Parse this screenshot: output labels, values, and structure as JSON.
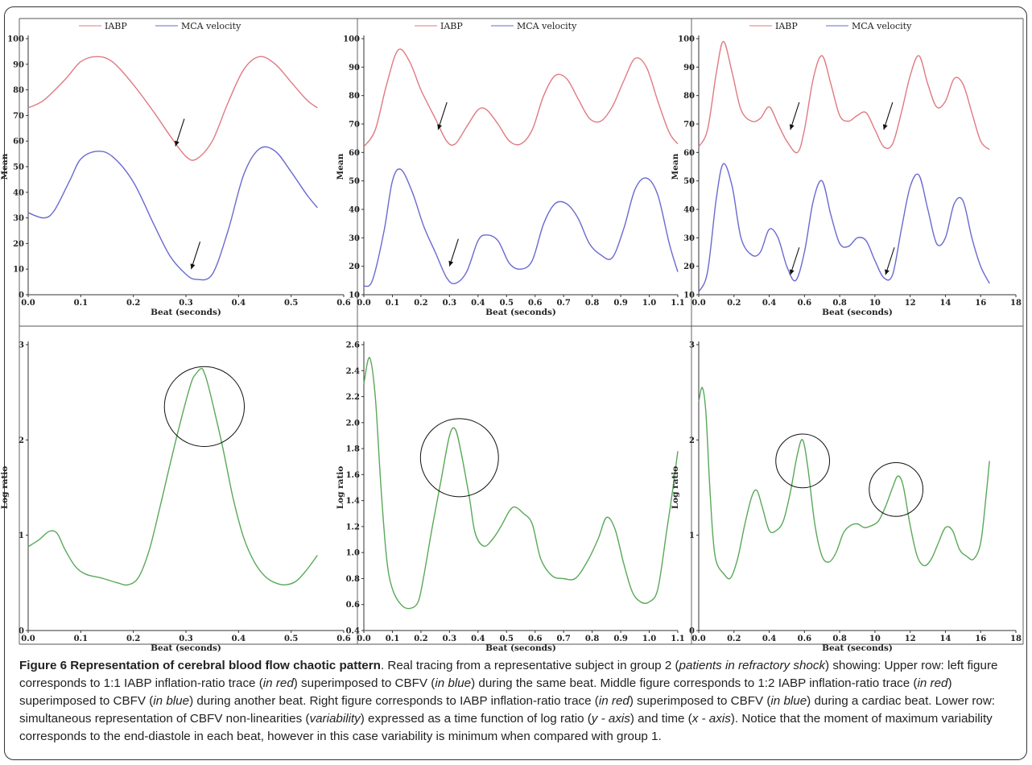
{
  "colors": {
    "iabp": "#e07a82",
    "mca": "#6a6ad0",
    "log_ratio": "#5aa85a",
    "frame": "#333333"
  },
  "chart_data": [
    {
      "type": "line",
      "id": "top-left",
      "xlabel": "Beat (seconds)",
      "ylabel": "Mean",
      "xlim": [
        0,
        0.6
      ],
      "ylim": [
        0,
        100
      ],
      "xticks": [
        "0.0",
        "0.1",
        "0.2",
        "0.3",
        "0.4",
        "0.5",
        "0.6"
      ],
      "yticks": [
        "0",
        "10",
        "20",
        "30",
        "40",
        "50",
        "60",
        "70",
        "80",
        "90",
        "100"
      ],
      "legend": [
        "IABP",
        "MCA velocity"
      ],
      "series": [
        {
          "name": "IABP",
          "color": "#e07a82",
          "x": [
            0,
            0.03,
            0.07,
            0.1,
            0.13,
            0.16,
            0.2,
            0.24,
            0.27,
            0.3,
            0.32,
            0.35,
            0.38,
            0.41,
            0.44,
            0.47,
            0.5,
            0.53,
            0.55
          ],
          "y": [
            73,
            76,
            84,
            91,
            93,
            91,
            82,
            71,
            62,
            54,
            53,
            60,
            75,
            88,
            93,
            90,
            83,
            76,
            73
          ]
        },
        {
          "name": "MCA velocity",
          "color": "#6a6ad0",
          "x": [
            0,
            0.03,
            0.05,
            0.08,
            0.1,
            0.13,
            0.16,
            0.2,
            0.24,
            0.27,
            0.3,
            0.32,
            0.35,
            0.38,
            0.41,
            0.44,
            0.47,
            0.5,
            0.53,
            0.55
          ],
          "y": [
            32,
            30,
            33,
            45,
            53,
            56,
            54,
            44,
            27,
            15,
            8,
            6,
            8,
            25,
            47,
            57,
            56,
            48,
            39,
            34
          ]
        }
      ],
      "arrows": [
        {
          "x": 0.28,
          "y": 58
        },
        {
          "x": 0.31,
          "y": 10
        }
      ]
    },
    {
      "type": "line",
      "id": "top-middle",
      "xlabel": "Beat (seconds)",
      "ylabel": "Mean",
      "xlim": [
        0,
        1.1
      ],
      "ylim": [
        10,
        100
      ],
      "xticks": [
        "0.0",
        "0.1",
        "0.2",
        "0.3",
        "0.4",
        "0.5",
        "0.6",
        "0.7",
        "0.8",
        "0.9",
        "1.0",
        "1.1"
      ],
      "yticks": [
        "10",
        "20",
        "30",
        "40",
        "50",
        "60",
        "70",
        "80",
        "90",
        "100"
      ],
      "legend": [
        "IABP",
        "MCA velocity"
      ],
      "series": [
        {
          "name": "IABP",
          "color": "#e07a82",
          "x": [
            0,
            0.04,
            0.08,
            0.12,
            0.16,
            0.2,
            0.25,
            0.29,
            0.32,
            0.36,
            0.4,
            0.43,
            0.47,
            0.51,
            0.55,
            0.59,
            0.63,
            0.67,
            0.71,
            0.75,
            0.79,
            0.83,
            0.87,
            0.91,
            0.95,
            0.99,
            1.03,
            1.07,
            1.1
          ],
          "y": [
            62,
            68,
            84,
            96,
            92,
            82,
            72,
            64,
            63,
            69,
            75,
            75,
            70,
            64,
            63,
            68,
            80,
            87,
            86,
            79,
            72,
            71,
            76,
            85,
            93,
            90,
            78,
            67,
            63
          ]
        },
        {
          "name": "MCA velocity",
          "color": "#6a6ad0",
          "x": [
            0,
            0.03,
            0.07,
            0.1,
            0.13,
            0.17,
            0.21,
            0.25,
            0.29,
            0.32,
            0.36,
            0.4,
            0.43,
            0.47,
            0.51,
            0.55,
            0.59,
            0.63,
            0.67,
            0.71,
            0.75,
            0.79,
            0.83,
            0.87,
            0.91,
            0.95,
            0.99,
            1.03,
            1.07,
            1.1
          ],
          "y": [
            13,
            15,
            32,
            50,
            54,
            46,
            34,
            25,
            16,
            14,
            18,
            29,
            31,
            29,
            21,
            19,
            22,
            35,
            42,
            42,
            37,
            28,
            24,
            23,
            33,
            47,
            51,
            45,
            28,
            18
          ]
        }
      ],
      "arrows": [
        {
          "x": 0.26,
          "y": 68
        },
        {
          "x": 0.3,
          "y": 20
        }
      ]
    },
    {
      "type": "line",
      "id": "top-right",
      "xlabel": "Beat (seconds)",
      "ylabel": "Mean",
      "xlim": [
        0,
        1.8
      ],
      "ylim": [
        10,
        100
      ],
      "xticks": [
        "0.0",
        "0.2",
        "0.4",
        "0.6",
        "0.8",
        "10",
        "12",
        "14",
        "16",
        "18"
      ],
      "yticks": [
        "10",
        "20",
        "30",
        "40",
        "50",
        "60",
        "70",
        "80",
        "90",
        "100"
      ],
      "legend": [
        "IABP",
        "MCA velocity"
      ],
      "series": [
        {
          "name": "IABP",
          "color": "#e07a82",
          "x": [
            0,
            0.05,
            0.1,
            0.14,
            0.19,
            0.24,
            0.3,
            0.35,
            0.4,
            0.45,
            0.5,
            0.56,
            0.6,
            0.65,
            0.7,
            0.75,
            0.8,
            0.85,
            0.9,
            0.95,
            1.0,
            1.05,
            1.1,
            1.15,
            1.2,
            1.25,
            1.3,
            1.35,
            1.4,
            1.45,
            1.5,
            1.55,
            1.6,
            1.65
          ],
          "y": [
            62,
            68,
            88,
            99,
            88,
            75,
            71,
            72,
            76,
            70,
            64,
            60,
            68,
            86,
            94,
            84,
            73,
            71,
            73,
            74,
            68,
            62,
            63,
            74,
            87,
            94,
            84,
            76,
            78,
            86,
            84,
            74,
            64,
            61
          ]
        },
        {
          "name": "MCA velocity",
          "color": "#6a6ad0",
          "x": [
            0,
            0.05,
            0.1,
            0.14,
            0.19,
            0.24,
            0.3,
            0.35,
            0.4,
            0.45,
            0.5,
            0.55,
            0.6,
            0.65,
            0.7,
            0.75,
            0.8,
            0.85,
            0.9,
            0.95,
            1.0,
            1.05,
            1.1,
            1.15,
            1.2,
            1.25,
            1.3,
            1.35,
            1.4,
            1.45,
            1.5,
            1.55,
            1.6,
            1.65
          ],
          "y": [
            11,
            18,
            44,
            56,
            48,
            30,
            24,
            25,
            33,
            30,
            20,
            15,
            25,
            43,
            50,
            38,
            28,
            27,
            30,
            29,
            22,
            16,
            17,
            33,
            48,
            52,
            40,
            28,
            30,
            42,
            43,
            30,
            20,
            14
          ]
        }
      ],
      "arrows": [
        {
          "x": 0.52,
          "y": 68
        },
        {
          "x": 0.52,
          "y": 17
        },
        {
          "x": 1.05,
          "y": 68
        },
        {
          "x": 1.06,
          "y": 17
        }
      ]
    },
    {
      "type": "line",
      "id": "bottom-left",
      "xlabel": "Beat (seconds)",
      "ylabel": "Log ratio",
      "xlim": [
        0,
        0.6
      ],
      "ylim": [
        0,
        3
      ],
      "xticks": [
        "0.0",
        "0.1",
        "0.2",
        "0.3",
        "0.4",
        "0.5",
        "0.6"
      ],
      "yticks": [
        "0",
        "1",
        "2",
        "3"
      ],
      "series": [
        {
          "name": "",
          "color": "#5aa85a",
          "x": [
            0,
            0.02,
            0.04,
            0.055,
            0.07,
            0.09,
            0.11,
            0.14,
            0.17,
            0.19,
            0.21,
            0.23,
            0.25,
            0.27,
            0.29,
            0.31,
            0.32,
            0.33,
            0.335,
            0.34,
            0.35,
            0.37,
            0.39,
            0.41,
            0.43,
            0.45,
            0.47,
            0.49,
            0.51,
            0.53,
            0.55
          ],
          "y": [
            0.88,
            0.95,
            1.04,
            1.02,
            0.85,
            0.67,
            0.59,
            0.55,
            0.5,
            0.48,
            0.56,
            0.84,
            1.28,
            1.75,
            2.2,
            2.6,
            2.7,
            2.75,
            2.7,
            2.62,
            2.4,
            1.92,
            1.38,
            0.97,
            0.72,
            0.57,
            0.5,
            0.48,
            0.52,
            0.64,
            0.79
          ]
        }
      ],
      "circles": [
        {
          "cx": 0.335,
          "cy": 2.35,
          "rx": 0.065,
          "ry": 0.48
        }
      ]
    },
    {
      "type": "line",
      "id": "bottom-middle",
      "xlabel": "Beat (seconds)",
      "ylabel": "Log ratio",
      "xlim": [
        0,
        1.1
      ],
      "ylim": [
        0.4,
        2.6
      ],
      "xticks": [
        "0.0",
        "0.1",
        "0.2",
        "0.3",
        "0.4",
        "0.5",
        "0.6",
        "0.7",
        "0.8",
        "0.9",
        "1.0",
        "1.1"
      ],
      "yticks": [
        "0.4",
        "0.6",
        "0.8",
        "1.0",
        "1.2",
        "1.4",
        "1.6",
        "1.8",
        "2.0",
        "2.2",
        "2.4",
        "2.6"
      ],
      "series": [
        {
          "name": "",
          "color": "#5aa85a",
          "x": [
            0,
            0.02,
            0.04,
            0.06,
            0.08,
            0.1,
            0.13,
            0.16,
            0.19,
            0.21,
            0.24,
            0.27,
            0.3,
            0.32,
            0.34,
            0.37,
            0.39,
            0.42,
            0.45,
            0.48,
            0.51,
            0.53,
            0.56,
            0.59,
            0.62,
            0.66,
            0.7,
            0.74,
            0.78,
            0.82,
            0.85,
            0.88,
            0.91,
            0.94,
            0.97,
            1.0,
            1.03,
            1.06,
            1.08,
            1.1
          ],
          "y": [
            2.3,
            2.5,
            2.2,
            1.5,
            0.95,
            0.72,
            0.6,
            0.57,
            0.62,
            0.82,
            1.2,
            1.55,
            1.9,
            1.95,
            1.78,
            1.42,
            1.15,
            1.05,
            1.1,
            1.2,
            1.32,
            1.35,
            1.3,
            1.22,
            0.95,
            0.82,
            0.8,
            0.8,
            0.92,
            1.1,
            1.27,
            1.18,
            0.92,
            0.7,
            0.62,
            0.62,
            0.72,
            1.15,
            1.45,
            1.78
          ]
        }
      ],
      "circles": [
        {
          "cx": 0.335,
          "cy": 1.73,
          "rx": 0.105,
          "ry": 0.37
        }
      ]
    },
    {
      "type": "line",
      "id": "bottom-right",
      "xlabel": "Beat (seconds)",
      "ylabel": "Log ratio",
      "xlim": [
        0,
        1.8
      ],
      "ylim": [
        0,
        3
      ],
      "xticks": [
        "0.0",
        "0.2",
        "0.4",
        "0.6",
        "0.8",
        "10",
        "12",
        "14",
        "16",
        "18"
      ],
      "yticks": [
        "0",
        "1",
        "2",
        "3"
      ],
      "series": [
        {
          "name": "",
          "color": "#5aa85a",
          "x": [
            0,
            0.02,
            0.04,
            0.06,
            0.08,
            0.1,
            0.14,
            0.18,
            0.22,
            0.26,
            0.3,
            0.33,
            0.36,
            0.4,
            0.44,
            0.48,
            0.52,
            0.56,
            0.59,
            0.62,
            0.66,
            0.7,
            0.74,
            0.78,
            0.82,
            0.86,
            0.9,
            0.94,
            0.98,
            1.02,
            1.06,
            1.1,
            1.13,
            1.16,
            1.2,
            1.24,
            1.28,
            1.32,
            1.36,
            1.4,
            1.44,
            1.48,
            1.52,
            1.56,
            1.6,
            1.63,
            1.65
          ],
          "y": [
            2.4,
            2.55,
            2.3,
            1.6,
            1.0,
            0.72,
            0.6,
            0.55,
            0.75,
            1.1,
            1.4,
            1.47,
            1.3,
            1.05,
            1.05,
            1.15,
            1.45,
            1.85,
            2.0,
            1.7,
            1.1,
            0.78,
            0.72,
            0.82,
            1.02,
            1.1,
            1.12,
            1.08,
            1.1,
            1.15,
            1.3,
            1.5,
            1.62,
            1.52,
            1.1,
            0.78,
            0.68,
            0.75,
            0.92,
            1.08,
            1.05,
            0.85,
            0.78,
            0.75,
            0.92,
            1.4,
            1.78
          ]
        }
      ],
      "circles": [
        {
          "cx": 0.59,
          "cy": 1.78,
          "rx": 0.105,
          "ry": 0.37
        },
        {
          "cx": 1.12,
          "cy": 1.48,
          "rx": 0.105,
          "ry": 0.37
        }
      ]
    }
  ],
  "caption": {
    "title": "Figure 6 Representation of cerebral blood flow chaotic pattern",
    "segments": [
      {
        "t": ". Real tracing from a representative subject in group 2 ("
      },
      {
        "t": "patients in refractory shock",
        "i": true
      },
      {
        "t": ") showing: Upper row: left figure corresponds to 1:1 IABP inflation-ratio trace ("
      },
      {
        "t": "in red",
        "i": true
      },
      {
        "t": ") superimposed to CBFV ("
      },
      {
        "t": "in blue",
        "i": true
      },
      {
        "t": ") during the same beat. Middle figure corresponds to 1:2 IABP inflation-ratio trace ("
      },
      {
        "t": "in red",
        "i": true
      },
      {
        "t": ") superimposed to CBFV ("
      },
      {
        "t": "in blue",
        "i": true
      },
      {
        "t": ") during another beat. Right figure corresponds to IABP inflation-ratio trace ("
      },
      {
        "t": "in red",
        "i": true
      },
      {
        "t": ") superimposed to CBFV ("
      },
      {
        "t": "in blue",
        "i": true
      },
      {
        "t": ") during a cardiac beat. Lower row: simultaneous representation of CBFV non-linearities ("
      },
      {
        "t": "variability",
        "i": true
      },
      {
        "t": ") expressed as a time function of log ratio ("
      },
      {
        "t": "y - axis",
        "i": true
      },
      {
        "t": ") and time ("
      },
      {
        "t": "x - axis",
        "i": true
      },
      {
        "t": "). Notice that the moment of maximum variability corresponds to the end-diastole in each beat, however in this case variability is minimum when compared with group 1."
      }
    ]
  }
}
